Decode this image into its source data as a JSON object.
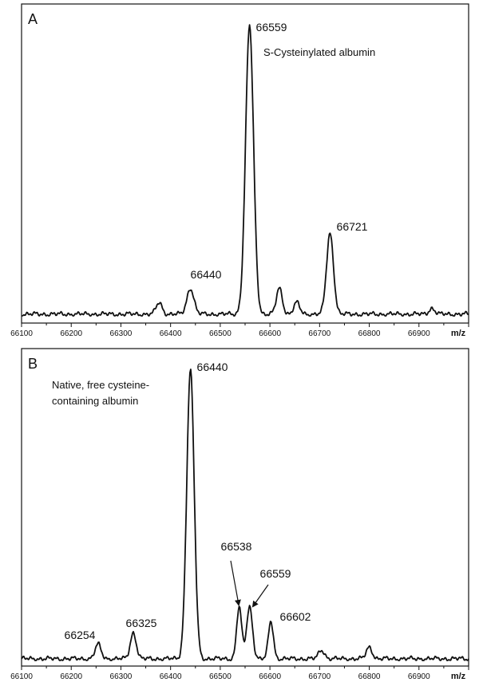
{
  "figure": {
    "panels": [
      {
        "letter": "A",
        "annotation_lines": [
          "S-Cysteinylated albumin"
        ],
        "peak_labels": [
          "66440",
          "66559",
          "66721"
        ]
      },
      {
        "letter": "B",
        "annotation_lines": [
          "Native, free cysteine-",
          "containing albumin"
        ],
        "peak_labels": [
          "66254",
          "66325",
          "66440",
          "66538",
          "66559",
          "66602"
        ]
      }
    ]
  },
  "chart_data": [
    {
      "type": "line",
      "panel": "A",
      "xlabel": "m/z",
      "ylabel": "",
      "xlim": [
        66100,
        67000
      ],
      "ylim": [
        0,
        100
      ],
      "xticks": [
        "66100",
        "66200",
        "66300",
        "66400",
        "66500",
        "66600",
        "66700",
        "66800",
        "66900"
      ],
      "annotations": [
        "S-Cysteinylated albumin"
      ],
      "peaks": [
        {
          "x": 66377,
          "y": 4
        },
        {
          "x": 66440,
          "y": 9
        },
        {
          "x": 66559,
          "y": 100
        },
        {
          "x": 66619,
          "y": 9
        },
        {
          "x": 66654,
          "y": 4
        },
        {
          "x": 66721,
          "y": 28
        },
        {
          "x": 66926,
          "y": 2
        }
      ],
      "peak_labels": [
        {
          "x": 66440,
          "text": "66440"
        },
        {
          "x": 66559,
          "text": "66559"
        },
        {
          "x": 66721,
          "text": "66721"
        }
      ]
    },
    {
      "type": "line",
      "panel": "B",
      "xlabel": "m/z",
      "ylabel": "",
      "xlim": [
        66100,
        67000
      ],
      "ylim": [
        0,
        100
      ],
      "xticks": [
        "66100",
        "66200",
        "66300",
        "66400",
        "66500",
        "66600",
        "66700",
        "66800",
        "66900"
      ],
      "annotations": [
        "Native, free cysteine-",
        "containing albumin"
      ],
      "peaks": [
        {
          "x": 66254,
          "y": 5
        },
        {
          "x": 66325,
          "y": 9
        },
        {
          "x": 66440,
          "y": 100
        },
        {
          "x": 66538,
          "y": 18
        },
        {
          "x": 66559,
          "y": 18
        },
        {
          "x": 66602,
          "y": 13
        },
        {
          "x": 66704,
          "y": 3
        },
        {
          "x": 66800,
          "y": 4
        }
      ],
      "peak_labels": [
        {
          "x": 66254,
          "text": "66254"
        },
        {
          "x": 66325,
          "text": "66325"
        },
        {
          "x": 66440,
          "text": "66440"
        },
        {
          "x": 66538,
          "text": "66538"
        },
        {
          "x": 66559,
          "text": "66559"
        },
        {
          "x": 66602,
          "text": "66602"
        }
      ]
    }
  ]
}
